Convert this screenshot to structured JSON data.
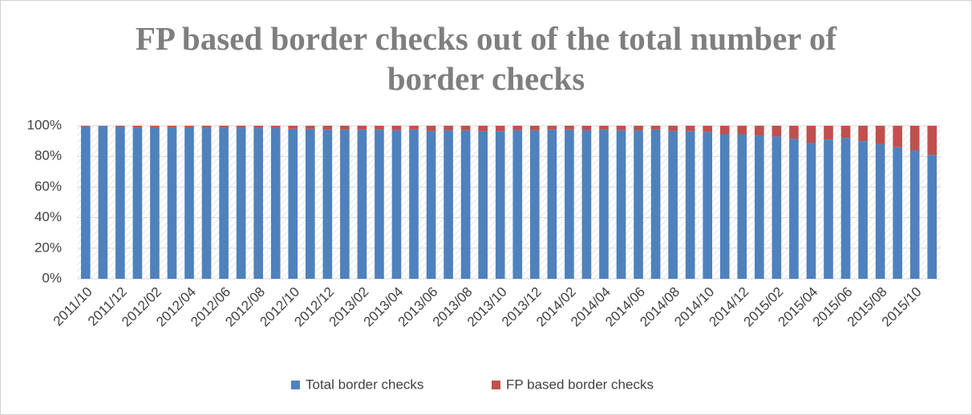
{
  "chart_data": {
    "type": "stacked_bar",
    "title": "FP based border checks out of the total number of border checks",
    "categories": [
      "2011/10",
      null,
      "2011/12",
      null,
      "2012/02",
      null,
      "2012/04",
      null,
      "2012/06",
      null,
      "2012/08",
      null,
      "2012/10",
      null,
      "2012/12",
      null,
      "2013/02",
      null,
      "2013/04",
      null,
      "2013/06",
      null,
      "2013/08",
      null,
      "2013/10",
      null,
      "2013/12",
      null,
      "2014/02",
      null,
      "2014/04",
      null,
      "2014/06",
      null,
      "2014/08",
      null,
      "2014/10",
      null,
      "2014/12",
      null,
      "2015/02",
      null,
      "2015/04",
      null,
      "2015/06",
      null,
      "2015/08",
      null,
      "2015/10",
      null
    ],
    "series": [
      {
        "name": "Total border checks",
        "color": "#4f81bd",
        "values": [
          99.5,
          99.8,
          99.5,
          99,
          99,
          99,
          99,
          98.5,
          98.5,
          98.5,
          98.5,
          98.5,
          98,
          98,
          97.5,
          97.5,
          97.5,
          97.5,
          97,
          97.5,
          96.5,
          97,
          97,
          96.5,
          96.5,
          97,
          97,
          97.5,
          97.5,
          97,
          97.5,
          97,
          97,
          97.5,
          96.5,
          96.5,
          96,
          94.5,
          94.5,
          93.5,
          93,
          91.5,
          89,
          91,
          92,
          90,
          88,
          86,
          84,
          81
        ]
      },
      {
        "name": "FP based border checks",
        "color": "#c0504d",
        "values": [
          0.5,
          0.2,
          0.5,
          1,
          1,
          1,
          1,
          1.5,
          1.5,
          1.5,
          1.5,
          1.5,
          2,
          2,
          2.5,
          2.5,
          2.5,
          2.5,
          3,
          2.5,
          3.5,
          3,
          3,
          3.5,
          3.5,
          3,
          3,
          2.5,
          2.5,
          3,
          2.5,
          3,
          3,
          2.5,
          3.5,
          3.5,
          4,
          5.5,
          5.5,
          6.5,
          7,
          8.5,
          11,
          9,
          8,
          10,
          12,
          14,
          16,
          19
        ]
      }
    ],
    "ylim": [
      0,
      100
    ],
    "yticks": [
      {
        "value": 0,
        "label": "0%"
      },
      {
        "value": 20,
        "label": "20%"
      },
      {
        "value": 40,
        "label": "40%"
      },
      {
        "value": 60,
        "label": "60%"
      },
      {
        "value": 80,
        "label": "80%"
      },
      {
        "value": 100,
        "label": "100%"
      }
    ],
    "grid": true,
    "legend": "bottom"
  }
}
